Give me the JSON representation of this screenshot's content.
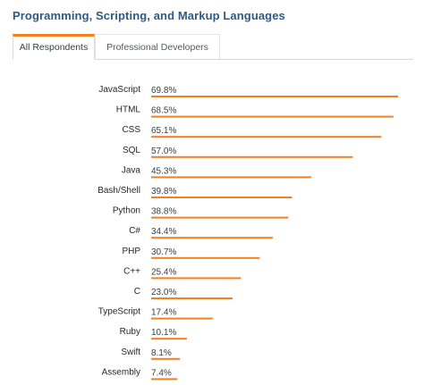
{
  "header": {
    "title": "Programming, Scripting, and Markup Languages"
  },
  "tabs": [
    {
      "label": "All Respondents",
      "active": true
    },
    {
      "label": "Professional Developers",
      "active": false
    }
  ],
  "colors": {
    "accent": "#f48024",
    "title": "#2d5a86"
  },
  "chart_data": {
    "type": "bar",
    "orientation": "horizontal",
    "categories": [
      "JavaScript",
      "HTML",
      "CSS",
      "SQL",
      "Java",
      "Bash/Shell",
      "Python",
      "C#",
      "PHP",
      "C++",
      "C",
      "TypeScript",
      "Ruby",
      "Swift",
      "Assembly"
    ],
    "values": [
      69.8,
      68.5,
      65.1,
      57.0,
      45.3,
      39.8,
      38.8,
      34.4,
      30.7,
      25.4,
      23.0,
      17.4,
      10.1,
      8.1,
      7.4
    ],
    "value_labels": [
      "69.8%",
      "68.5%",
      "65.1%",
      "57.0%",
      "45.3%",
      "39.8%",
      "38.8%",
      "34.4%",
      "30.7%",
      "25.4%",
      "23.0%",
      "17.4%",
      "10.1%",
      "8.1%",
      "7.4%"
    ],
    "unit": "%",
    "xlim": [
      0,
      69.8
    ],
    "grid": false,
    "legend": "none"
  }
}
